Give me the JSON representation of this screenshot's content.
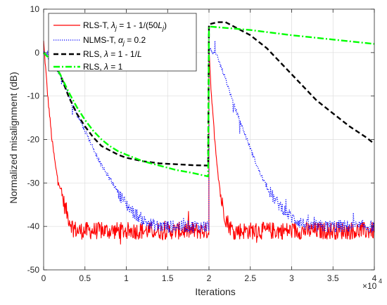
{
  "chart_data": {
    "type": "line",
    "xlabel": "Iterations",
    "ylabel": "Normalized misalignment (dB)",
    "x_multiplier": "×10",
    "x_multiplier_exponent": "4",
    "xlim": [
      0,
      40000
    ],
    "ylim": [
      -50,
      10
    ],
    "x_ticks": [
      0,
      5000,
      10000,
      15000,
      20000,
      25000,
      30000,
      35000,
      40000
    ],
    "x_tick_labels": [
      "0",
      "0.5",
      "1",
      "1.5",
      "2",
      "2.5",
      "3",
      "3.5",
      "4"
    ],
    "y_ticks": [
      -50,
      -40,
      -30,
      -20,
      -10,
      0,
      10
    ],
    "y_tick_labels": [
      "-50",
      "-40",
      "-30",
      "-20",
      "-10",
      "0",
      "10"
    ],
    "grid": true,
    "legend_position": "top-left",
    "series": [
      {
        "name": "RLS-T, λj = 1 - 1/(50Lj)",
        "legend_text": {
          "a": "RLS-T, ",
          "b": "λ",
          "c": "j",
          "d": " = 1 - 1/(50",
          "e": "L",
          "f": "j",
          "g": ")"
        },
        "color": "#ff0000",
        "style": "solid",
        "noise_db": 2.0,
        "points": [
          [
            0,
            2.5
          ],
          [
            500,
            -10
          ],
          [
            1000,
            -20
          ],
          [
            1500,
            -27
          ],
          [
            2000,
            -31
          ],
          [
            2500,
            -35
          ],
          [
            3000,
            -38
          ],
          [
            3500,
            -40
          ],
          [
            4000,
            -41
          ],
          [
            6000,
            -41
          ],
          [
            10000,
            -41
          ],
          [
            15000,
            -41
          ],
          [
            19990,
            -41
          ],
          [
            20000,
            1
          ],
          [
            20300,
            -10
          ],
          [
            20700,
            -20
          ],
          [
            21100,
            -28
          ],
          [
            21500,
            -34
          ],
          [
            22000,
            -38
          ],
          [
            22500,
            -40
          ],
          [
            23000,
            -41
          ],
          [
            30000,
            -41
          ],
          [
            35000,
            -41
          ],
          [
            40000,
            -41
          ]
        ]
      },
      {
        "name": "NLMS-T, αj = 0.2",
        "legend_text": {
          "a": "NLMS-T, ",
          "b": "α",
          "c": "j",
          "d": " = 0.2"
        },
        "color": "#0000ff",
        "style": "dotted",
        "noise_db": 1.4,
        "points": [
          [
            0,
            0
          ],
          [
            1000,
            -2
          ],
          [
            2000,
            -5
          ],
          [
            3000,
            -10
          ],
          [
            4000,
            -14
          ],
          [
            5000,
            -18
          ],
          [
            6000,
            -22
          ],
          [
            7000,
            -26
          ],
          [
            8000,
            -29
          ],
          [
            9000,
            -32
          ],
          [
            10000,
            -35
          ],
          [
            11000,
            -37
          ],
          [
            12000,
            -38.5
          ],
          [
            13000,
            -39.5
          ],
          [
            14000,
            -40
          ],
          [
            19990,
            -40
          ],
          [
            20000,
            1
          ],
          [
            21000,
            -1
          ],
          [
            22000,
            -6
          ],
          [
            23000,
            -12
          ],
          [
            24000,
            -17
          ],
          [
            25000,
            -22
          ],
          [
            26000,
            -27
          ],
          [
            27000,
            -31
          ],
          [
            28000,
            -34
          ],
          [
            29000,
            -36
          ],
          [
            30000,
            -38
          ],
          [
            31000,
            -39
          ],
          [
            32000,
            -40
          ],
          [
            40000,
            -40
          ]
        ]
      },
      {
        "name": "RLS, λ = 1 - 1/L",
        "legend_text": {
          "a": "RLS, ",
          "b": "λ",
          "c": " = 1 - 1/",
          "d": "L"
        },
        "color": "#000000",
        "style": "dashed",
        "noise_db": 0,
        "points": [
          [
            0,
            0
          ],
          [
            1000,
            -2
          ],
          [
            2000,
            -5
          ],
          [
            3000,
            -10
          ],
          [
            4000,
            -14
          ],
          [
            5000,
            -17
          ],
          [
            6000,
            -19.5
          ],
          [
            7000,
            -21.5
          ],
          [
            8000,
            -22.5
          ],
          [
            9000,
            -23.5
          ],
          [
            10000,
            -24.2
          ],
          [
            12000,
            -25
          ],
          [
            14000,
            -25.5
          ],
          [
            16000,
            -25.7
          ],
          [
            18000,
            -25.9
          ],
          [
            19900,
            -26
          ],
          [
            20000,
            6.5
          ],
          [
            21000,
            7
          ],
          [
            22000,
            7
          ],
          [
            23000,
            6
          ],
          [
            25000,
            4
          ],
          [
            27000,
            1
          ],
          [
            29000,
            -3
          ],
          [
            31000,
            -7
          ],
          [
            33000,
            -11
          ],
          [
            35000,
            -14
          ],
          [
            37000,
            -17
          ],
          [
            39000,
            -19.5
          ],
          [
            40000,
            -21
          ]
        ]
      },
      {
        "name": "RLS, λ = 1",
        "legend_text": {
          "a": "RLS, ",
          "b": "λ",
          "c": " = 1"
        },
        "color": "#00ff00",
        "style": "dashdot",
        "noise_db": 0,
        "points": [
          [
            0,
            0
          ],
          [
            1000,
            -2
          ],
          [
            2000,
            -5
          ],
          [
            3000,
            -9
          ],
          [
            4000,
            -12.5
          ],
          [
            5000,
            -15.5
          ],
          [
            6000,
            -18
          ],
          [
            7000,
            -20
          ],
          [
            8000,
            -21.5
          ],
          [
            9000,
            -22.7
          ],
          [
            10000,
            -23.5
          ],
          [
            12000,
            -25
          ],
          [
            14000,
            -26
          ],
          [
            16000,
            -27
          ],
          [
            18000,
            -27.7
          ],
          [
            19900,
            -28.5
          ],
          [
            20000,
            6
          ],
          [
            25000,
            5.2
          ],
          [
            30000,
            4
          ],
          [
            35000,
            3
          ],
          [
            40000,
            2
          ]
        ]
      }
    ]
  }
}
